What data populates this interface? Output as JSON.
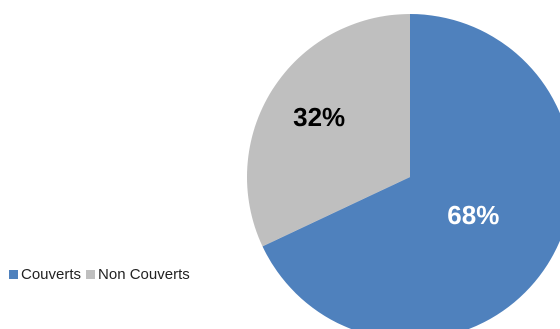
{
  "chart_data": {
    "type": "pie",
    "categories": [
      "Couverts",
      "Non Couverts"
    ],
    "values": [
      68,
      32
    ],
    "data_labels": [
      "68%",
      "32%"
    ],
    "colors": [
      "#4f81bd",
      "#bfbfbf"
    ],
    "start_angle_deg": 0,
    "direction": "clockwise",
    "legend_position": "bottom-left",
    "title": ""
  },
  "legend": {
    "items": [
      {
        "label": "Couverts",
        "color": "#4f81bd"
      },
      {
        "label": "Non Couverts",
        "color": "#bfbfbf"
      }
    ]
  }
}
